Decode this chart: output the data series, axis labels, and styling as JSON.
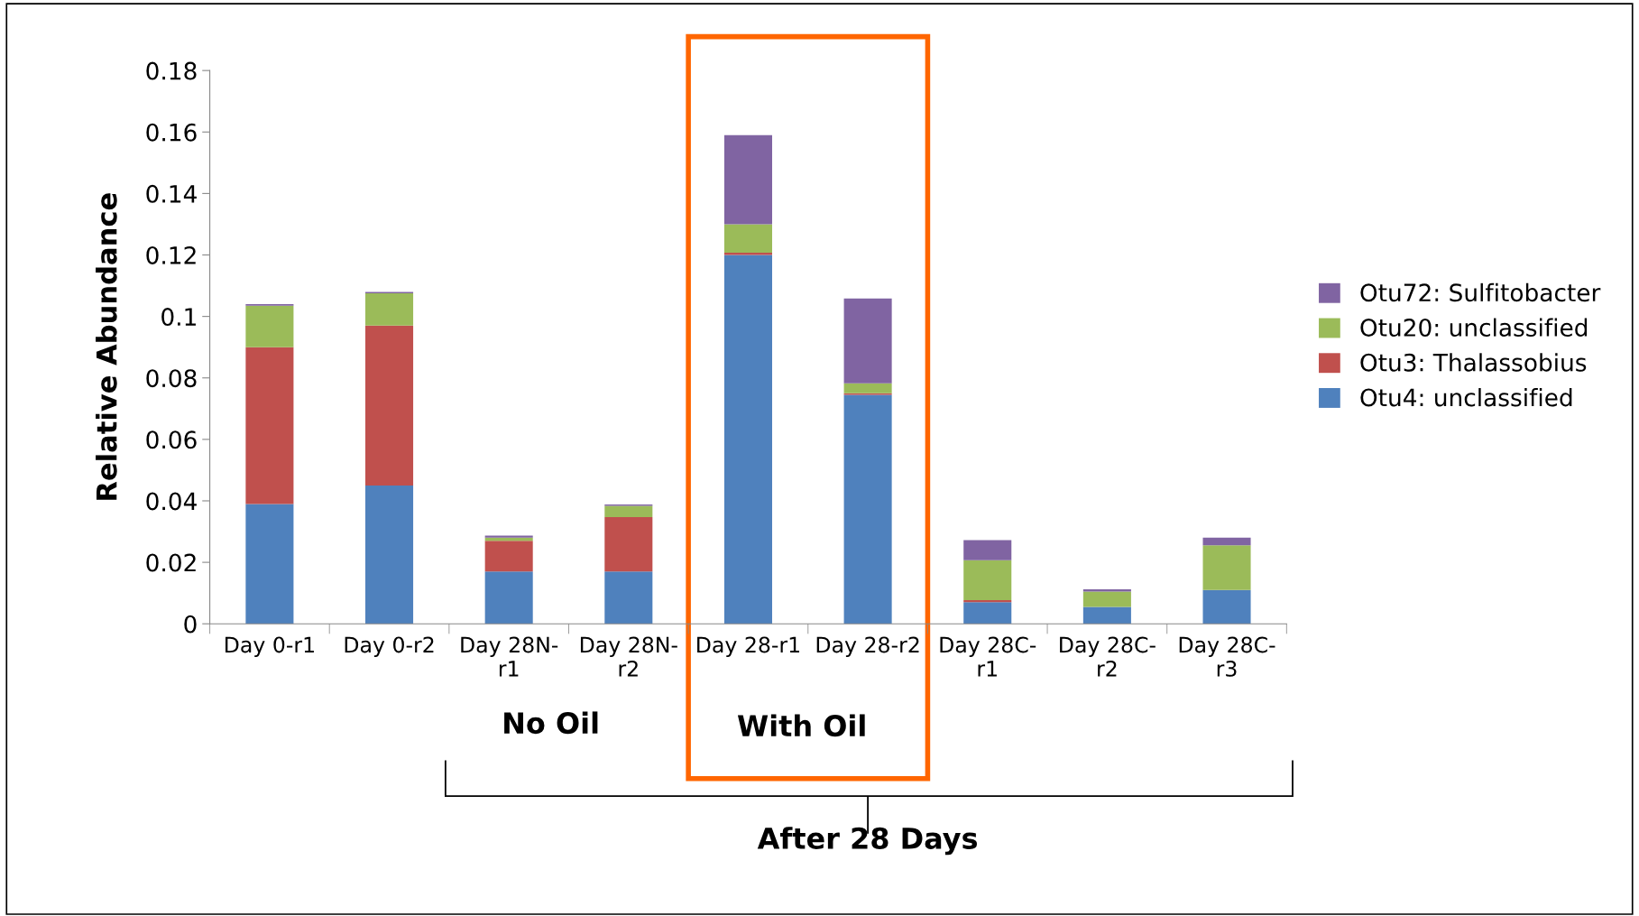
{
  "chart_data": {
    "type": "bar",
    "stacked": true,
    "ylabel": "Relative Abundance",
    "categories": [
      "Day 0-r1",
      "Day 0-r2",
      "Day 28N-r1",
      "Day 28N-r2",
      "Day 28-r1",
      "Day 28-r2",
      "Day 28C-r1",
      "Day 28C-r2",
      "Day 28C-r3"
    ],
    "series": [
      {
        "name": "Otu4: unclassified",
        "color": "#4f81bd",
        "values": [
          0.039,
          0.045,
          0.017,
          0.017,
          0.12,
          0.0745,
          0.007,
          0.0055,
          0.011
        ]
      },
      {
        "name": "Otu3: Thalassobius",
        "color": "#c0504d",
        "values": [
          0.051,
          0.052,
          0.01,
          0.0177,
          0.0007,
          0.0005,
          0.0007,
          0,
          0
        ]
      },
      {
        "name": "Otu20: unclassified",
        "color": "#9bbb59",
        "values": [
          0.0135,
          0.0105,
          0.001,
          0.0037,
          0.0093,
          0.0032,
          0.013,
          0.005,
          0.0145
        ]
      },
      {
        "name": "Otu72: Sulfitobacter",
        "color": "#8064a2",
        "values": [
          0.0005,
          0.0005,
          0.0007,
          0.0004,
          0.029,
          0.0276,
          0.0065,
          0.0007,
          0.0025
        ]
      }
    ],
    "ylim": [
      0,
      0.18
    ],
    "yticks": [
      0,
      0.02,
      0.04,
      0.06,
      0.08,
      0.1,
      0.12,
      0.14,
      0.16,
      0.18
    ],
    "grid": false,
    "legend": "right",
    "annotations": [
      "No Oil",
      "With Oil",
      "After 28 Days"
    ]
  }
}
